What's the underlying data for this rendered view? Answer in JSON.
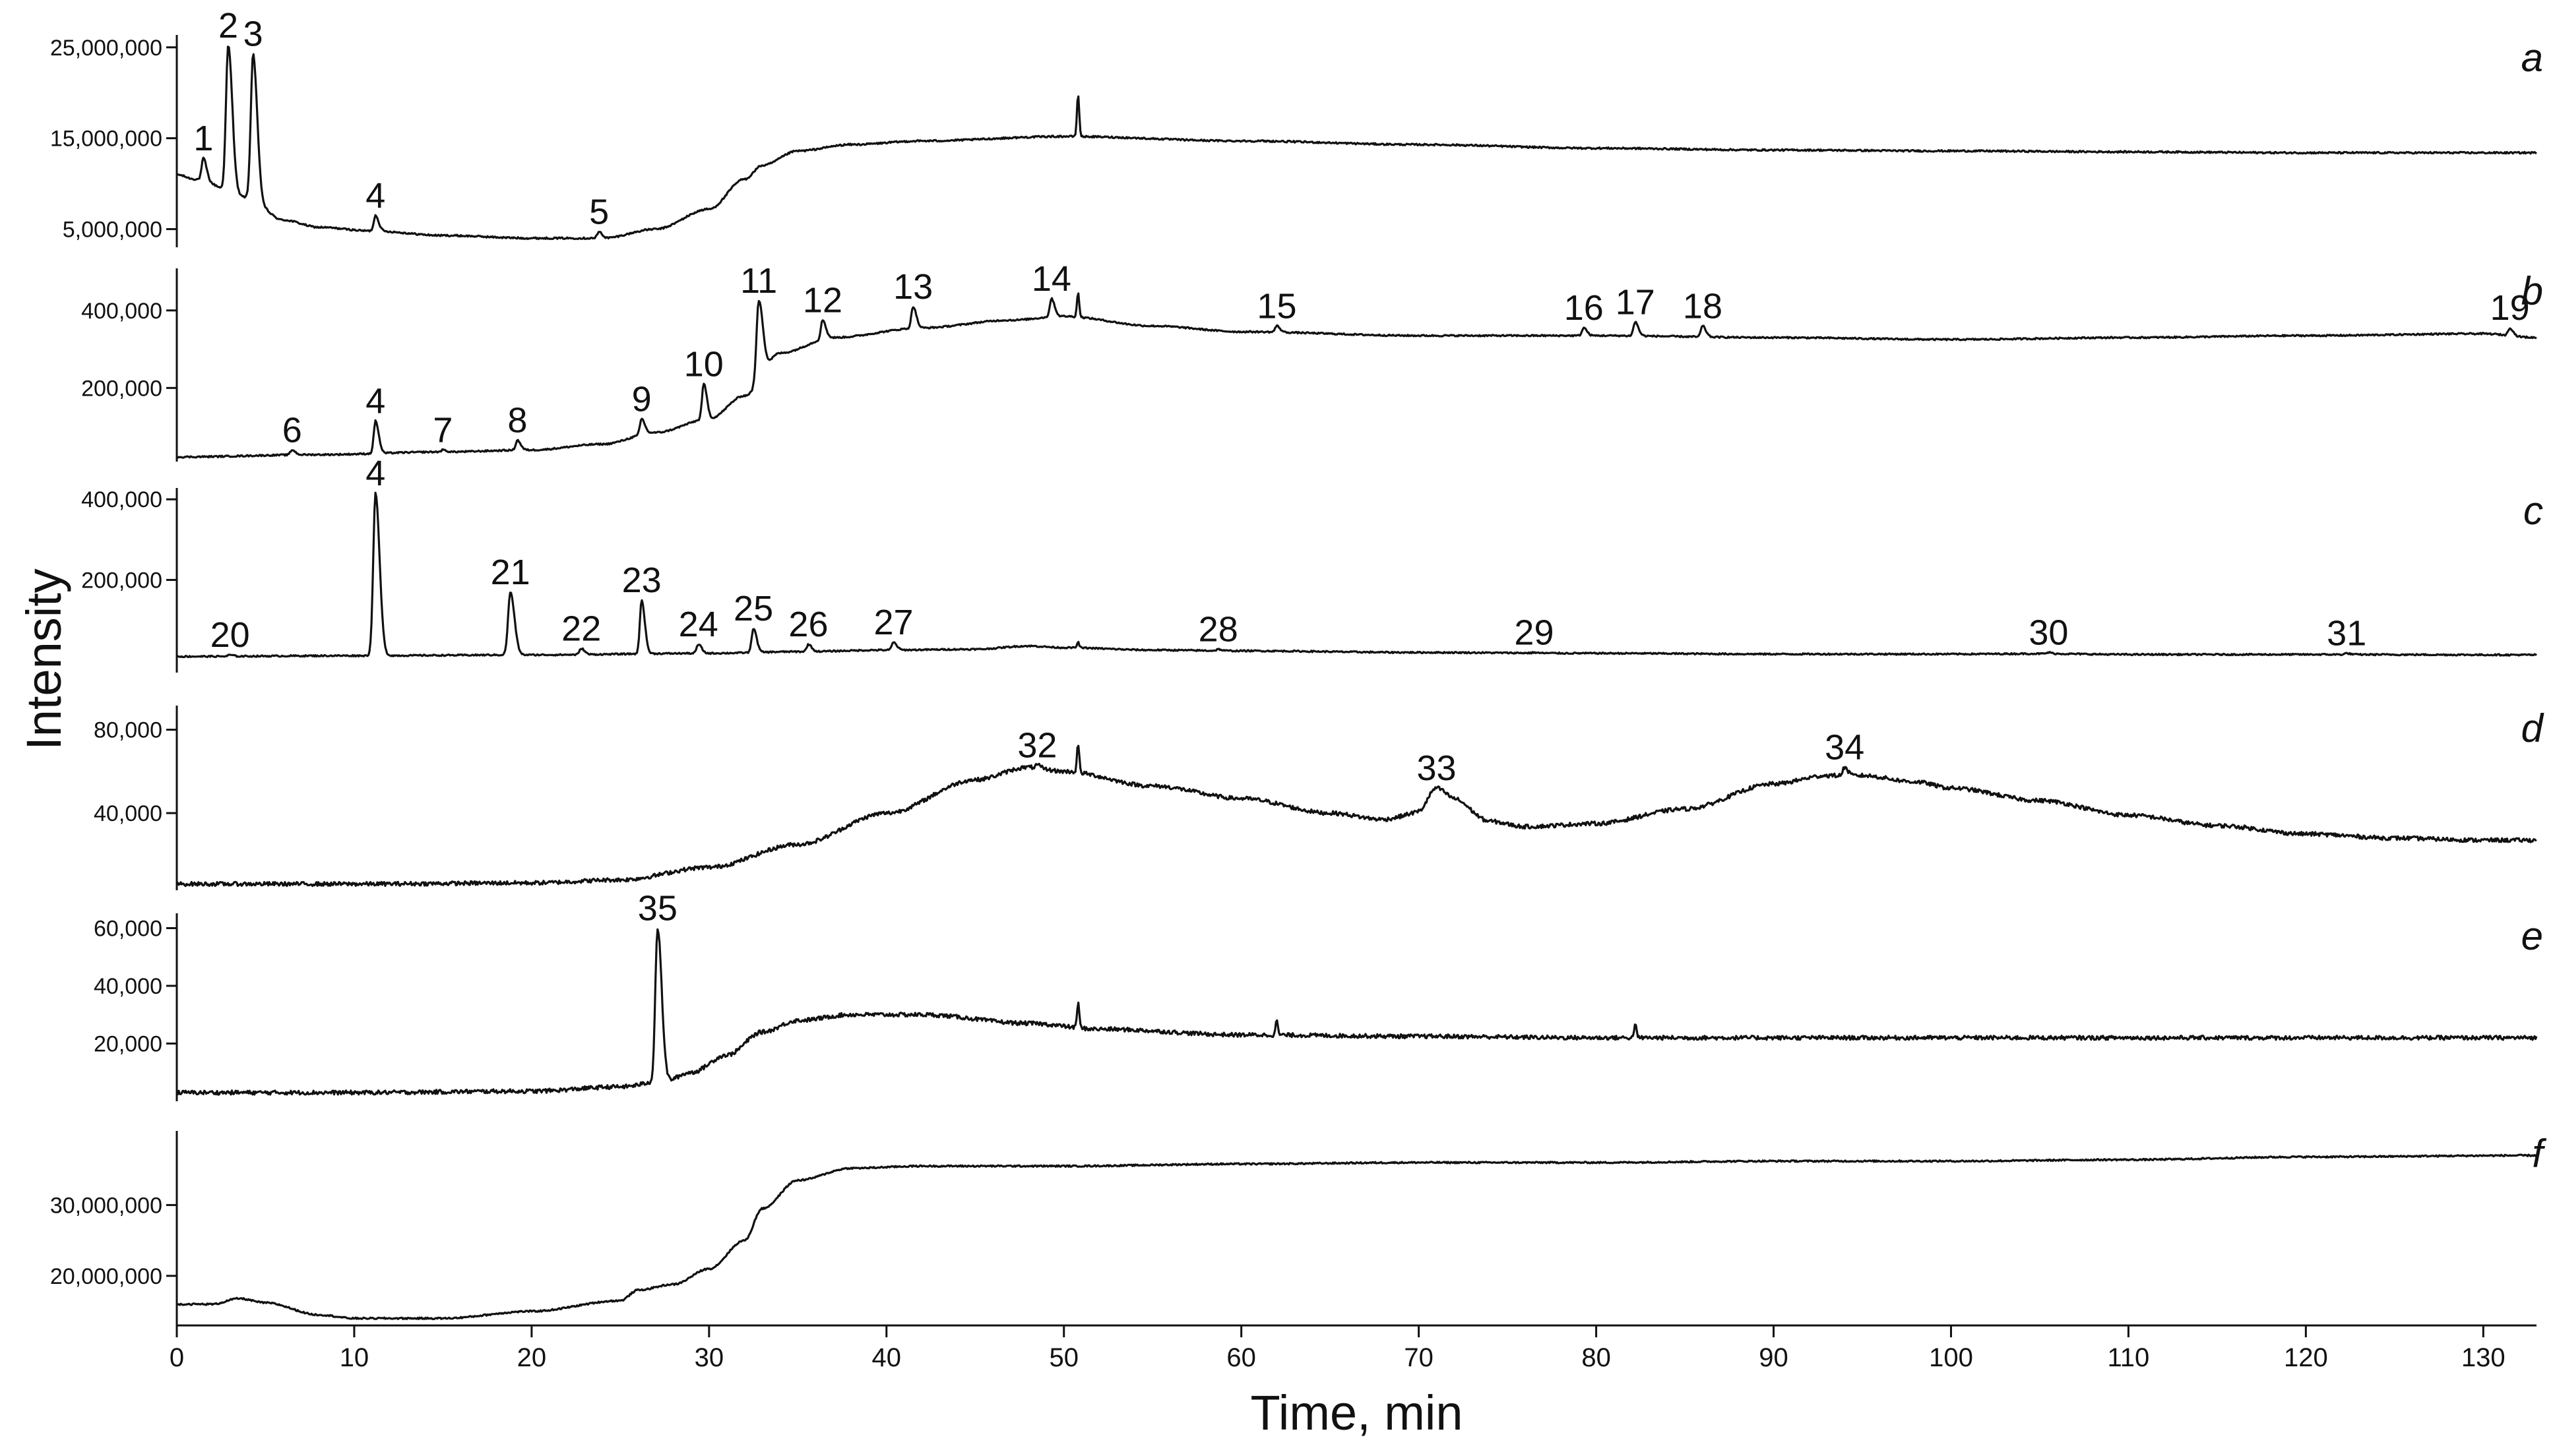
{
  "chart_data": {
    "type": "line",
    "xlabel": "Time, min",
    "ylabel": "Intensity",
    "xlim": [
      0,
      133
    ],
    "x_ticks": [
      0,
      10,
      20,
      30,
      40,
      50,
      60,
      70,
      80,
      90,
      100,
      110,
      120,
      130
    ],
    "panels": [
      {
        "id": "a",
        "ylim": [
          3000000,
          26000000
        ],
        "y_ticks": [
          {
            "value": 5000000,
            "label": "5,000,000"
          },
          {
            "value": 15000000,
            "label": "15,000,000"
          },
          {
            "value": 25000000,
            "label": "25,000,000"
          }
        ],
        "baseline": [
          [
            0,
            11000000
          ],
          [
            1,
            10500000
          ],
          [
            4,
            8500000
          ],
          [
            6,
            6000000
          ],
          [
            8,
            5200000
          ],
          [
            11,
            4800000
          ],
          [
            15,
            4300000
          ],
          [
            20,
            4000000
          ],
          [
            24,
            4000000
          ],
          [
            27,
            5000000
          ],
          [
            30,
            7200000
          ],
          [
            32,
            10500000
          ],
          [
            33,
            12000000
          ],
          [
            35,
            13600000
          ],
          [
            38,
            14300000
          ],
          [
            42,
            14700000
          ],
          [
            50,
            15200000
          ],
          [
            60,
            14700000
          ],
          [
            70,
            14300000
          ],
          [
            80,
            13900000
          ],
          [
            90,
            13700000
          ],
          [
            100,
            13600000
          ],
          [
            110,
            13500000
          ],
          [
            120,
            13400000
          ],
          [
            130,
            13400000
          ],
          [
            133,
            13400000
          ]
        ],
        "peaks": [
          {
            "label": "1",
            "x": 1.5,
            "y": 12800000
          },
          {
            "label": "2",
            "x": 2.9,
            "y": 25200000
          },
          {
            "label": "3",
            "x": 4.3,
            "y": 24300000
          },
          {
            "label": "4",
            "x": 11.2,
            "y": 6500000
          },
          {
            "label": "5",
            "x": 23.8,
            "y": 4700000
          }
        ],
        "spikes": [
          {
            "x": 50.8,
            "y": 19800000
          }
        ]
      },
      {
        "id": "b",
        "ylim": [
          10000,
          500000
        ],
        "y_ticks": [
          {
            "value": 200000,
            "label": "200,000"
          },
          {
            "value": 400000,
            "label": "400,000"
          }
        ],
        "baseline": [
          [
            0,
            22000
          ],
          [
            8,
            28000
          ],
          [
            15,
            35000
          ],
          [
            20,
            40000
          ],
          [
            24,
            55000
          ],
          [
            27,
            85000
          ],
          [
            30,
            120000
          ],
          [
            32,
            180000
          ],
          [
            34,
            290000
          ],
          [
            37,
            330000
          ],
          [
            42,
            355000
          ],
          [
            47,
            375000
          ],
          [
            50,
            385000
          ],
          [
            55,
            360000
          ],
          [
            60,
            345000
          ],
          [
            70,
            335000
          ],
          [
            80,
            335000
          ],
          [
            90,
            330000
          ],
          [
            100,
            325000
          ],
          [
            110,
            330000
          ],
          [
            120,
            335000
          ],
          [
            130,
            340000
          ],
          [
            133,
            330000
          ]
        ],
        "peaks": [
          {
            "label": "6",
            "x": 6.5,
            "y": 40000
          },
          {
            "label": "4",
            "x": 11.2,
            "y": 115000
          },
          {
            "label": "7",
            "x": 15.0,
            "y": 40000
          },
          {
            "label": "8",
            "x": 19.2,
            "y": 65000
          },
          {
            "label": "9",
            "x": 26.2,
            "y": 120000
          },
          {
            "label": "10",
            "x": 29.7,
            "y": 210000
          },
          {
            "label": "11",
            "x": 32.8,
            "y": 425000
          },
          {
            "label": "12",
            "x": 36.4,
            "y": 375000
          },
          {
            "label": "13",
            "x": 41.5,
            "y": 410000
          },
          {
            "label": "14",
            "x": 49.3,
            "y": 430000
          },
          {
            "label": "15",
            "x": 62.0,
            "y": 360000
          },
          {
            "label": "16",
            "x": 79.3,
            "y": 355000
          },
          {
            "label": "17",
            "x": 82.2,
            "y": 370000
          },
          {
            "label": "18",
            "x": 86.0,
            "y": 360000
          },
          {
            "label": "19",
            "x": 131.5,
            "y": 355000
          }
        ],
        "spikes": [
          {
            "x": 50.8,
            "y": 445000
          }
        ]
      },
      {
        "id": "c",
        "ylim": [
          -30000,
          420000
        ],
        "y_ticks": [
          {
            "value": 200000,
            "label": "200,000"
          },
          {
            "value": 400000,
            "label": "400,000"
          }
        ],
        "baseline": [
          [
            0,
            10000
          ],
          [
            10,
            12000
          ],
          [
            20,
            14000
          ],
          [
            30,
            18000
          ],
          [
            35,
            22000
          ],
          [
            40,
            26000
          ],
          [
            45,
            28000
          ],
          [
            48,
            36000
          ],
          [
            50,
            32000
          ],
          [
            55,
            26000
          ],
          [
            60,
            24000
          ],
          [
            70,
            20000
          ],
          [
            80,
            18000
          ],
          [
            90,
            16000
          ],
          [
            100,
            16000
          ],
          [
            105,
            17000
          ],
          [
            110,
            15000
          ],
          [
            120,
            15000
          ],
          [
            133,
            14000
          ]
        ],
        "peaks": [
          {
            "label": "20",
            "x": 3.0,
            "y": 14000
          },
          {
            "label": "4",
            "x": 11.2,
            "y": 415000
          },
          {
            "label": "21",
            "x": 18.8,
            "y": 170000
          },
          {
            "label": "22",
            "x": 22.8,
            "y": 30000
          },
          {
            "label": "23",
            "x": 26.2,
            "y": 150000
          },
          {
            "label": "24",
            "x": 29.4,
            "y": 40000
          },
          {
            "label": "25",
            "x": 32.5,
            "y": 80000
          },
          {
            "label": "26",
            "x": 35.6,
            "y": 40000
          },
          {
            "label": "27",
            "x": 40.4,
            "y": 45000
          },
          {
            "label": "28",
            "x": 58.7,
            "y": 28000
          },
          {
            "label": "29",
            "x": 76.5,
            "y": 20000
          },
          {
            "label": "30",
            "x": 105.5,
            "y": 20000
          },
          {
            "label": "31",
            "x": 122.3,
            "y": 18000
          }
        ],
        "spikes": [
          {
            "x": 50.8,
            "y": 45000
          }
        ]
      },
      {
        "id": "d",
        "ylim": [
          3000,
          90000
        ],
        "y_ticks": [
          {
            "value": 40000,
            "label": "40,000"
          },
          {
            "value": 80000,
            "label": "80,000"
          }
        ],
        "baseline": [
          [
            0,
            6000
          ],
          [
            10,
            6000
          ],
          [
            20,
            6500
          ],
          [
            25,
            8000
          ],
          [
            30,
            14000
          ],
          [
            35,
            25000
          ],
          [
            40,
            40000
          ],
          [
            45,
            56000
          ],
          [
            48,
            62000
          ],
          [
            50,
            60000
          ],
          [
            55,
            53000
          ],
          [
            60,
            47000
          ],
          [
            65,
            40000
          ],
          [
            68,
            37000
          ],
          [
            70,
            40000
          ],
          [
            71,
            49000
          ],
          [
            72,
            45000
          ],
          [
            74,
            36000
          ],
          [
            76,
            33500
          ],
          [
            80,
            35000
          ],
          [
            85,
            42000
          ],
          [
            90,
            54000
          ],
          [
            93,
            58000
          ],
          [
            95,
            58000
          ],
          [
            98,
            55000
          ],
          [
            100,
            52000
          ],
          [
            105,
            46000
          ],
          [
            110,
            39000
          ],
          [
            115,
            34000
          ],
          [
            120,
            30000
          ],
          [
            125,
            28000
          ],
          [
            130,
            27000
          ],
          [
            133,
            27000
          ]
        ],
        "peaks": [
          {
            "label": "32",
            "x": 48.5,
            "y": 63000
          },
          {
            "label": "33",
            "x": 71.0,
            "y": 52000
          },
          {
            "label": "34",
            "x": 94.0,
            "y": 62000
          }
        ],
        "spikes": [
          {
            "x": 50.8,
            "y": 73000
          }
        ]
      },
      {
        "id": "e",
        "ylim": [
          0,
          64000
        ],
        "y_ticks": [
          {
            "value": 20000,
            "label": "20,000"
          },
          {
            "value": 40000,
            "label": "40,000"
          },
          {
            "value": 60000,
            "label": "60,000"
          }
        ],
        "baseline": [
          [
            0,
            3000
          ],
          [
            10,
            3000
          ],
          [
            20,
            3500
          ],
          [
            25,
            5000
          ],
          [
            27.5,
            7000
          ],
          [
            29,
            10000
          ],
          [
            31,
            16000
          ],
          [
            33,
            24000
          ],
          [
            35,
            28000
          ],
          [
            38,
            30000
          ],
          [
            42,
            30000
          ],
          [
            48,
            27000
          ],
          [
            52,
            25000
          ],
          [
            60,
            23000
          ],
          [
            70,
            22500
          ],
          [
            80,
            22000
          ],
          [
            90,
            22000
          ],
          [
            100,
            22000
          ],
          [
            110,
            22000
          ],
          [
            120,
            22000
          ],
          [
            133,
            22000
          ]
        ],
        "peaks": [
          {
            "label": "35",
            "x": 27.1,
            "y": 60000
          }
        ],
        "spikes": [
          {
            "x": 50.8,
            "y": 34000
          },
          {
            "x": 62.0,
            "y": 28000
          },
          {
            "x": 82.2,
            "y": 27000
          }
        ]
      },
      {
        "id": "f",
        "ylim": [
          13000000,
          40000000
        ],
        "y_ticks": [
          {
            "value": 20000000,
            "label": "20,000,000"
          },
          {
            "value": 30000000,
            "label": "30,000,000"
          }
        ],
        "baseline": [
          [
            0,
            16000000
          ],
          [
            2,
            16000000
          ],
          [
            3.5,
            16800000
          ],
          [
            5,
            16200000
          ],
          [
            8,
            14500000
          ],
          [
            10,
            14000000
          ],
          [
            15,
            14000000
          ],
          [
            20,
            15000000
          ],
          [
            25,
            16500000
          ],
          [
            26,
            18000000
          ],
          [
            28,
            18800000
          ],
          [
            30,
            21000000
          ],
          [
            32,
            25000000
          ],
          [
            33,
            29500000
          ],
          [
            35,
            33500000
          ],
          [
            38,
            35200000
          ],
          [
            42,
            35500000
          ],
          [
            50,
            35500000
          ],
          [
            60,
            35800000
          ],
          [
            70,
            36000000
          ],
          [
            80,
            36000000
          ],
          [
            90,
            36200000
          ],
          [
            100,
            36200000
          ],
          [
            110,
            36400000
          ],
          [
            120,
            36800000
          ],
          [
            133,
            37000000
          ]
        ],
        "peaks": [],
        "spikes": []
      }
    ]
  }
}
